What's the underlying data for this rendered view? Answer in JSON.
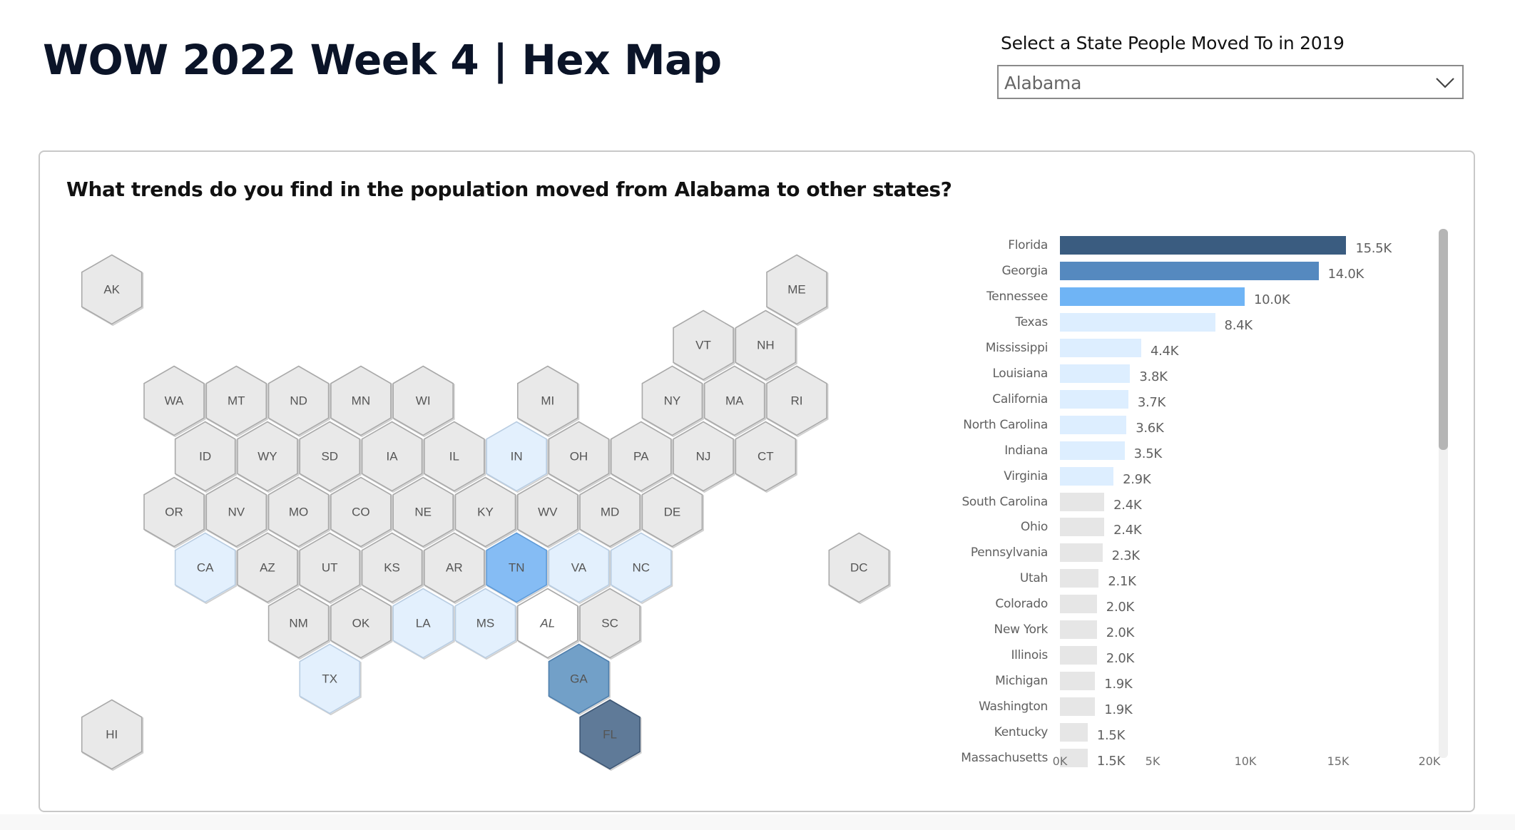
{
  "header": {
    "title": "WOW 2022 Week 4 | Hex Map"
  },
  "slicer": {
    "label": "Select a State People Moved To in 2019",
    "selected_value": "Alabama",
    "icon": "chevron-down-icon"
  },
  "panel": {
    "title": "What trends do you find in the population moved from Alabama to other states?"
  },
  "colors": {
    "hex_default_fill": "#e9e9e9",
    "hex_stroke": "#a9a9a9",
    "hex_selected_fill": "#ffffff",
    "hex_light_fill": "#e3f0fd",
    "hex_tn_fill": "#85bcf4",
    "hex_ga_fill": "#72a0c8",
    "hex_fl_fill": "#5f7a98",
    "bar_florida": "#3a5c80",
    "bar_georgia": "#5589bf",
    "bar_tennessee": "#6fb4f5",
    "bar_light": "#ddeeff",
    "bar_gray": "#e6e6e6"
  },
  "hexmap": {
    "states": [
      {
        "abbr": "AK",
        "k": -2,
        "row": 0,
        "tier": "none"
      },
      {
        "abbr": "ME",
        "k": 20,
        "row": 0,
        "tier": "none"
      },
      {
        "abbr": "VT",
        "k": 17,
        "row": 1,
        "tier": "none"
      },
      {
        "abbr": "NH",
        "k": 19,
        "row": 1,
        "tier": "none"
      },
      {
        "abbr": "WA",
        "k": 0,
        "row": 2,
        "tier": "none"
      },
      {
        "abbr": "MT",
        "k": 2,
        "row": 2,
        "tier": "none"
      },
      {
        "abbr": "ND",
        "k": 4,
        "row": 2,
        "tier": "none"
      },
      {
        "abbr": "MN",
        "k": 6,
        "row": 2,
        "tier": "none"
      },
      {
        "abbr": "WI",
        "k": 8,
        "row": 2,
        "tier": "none"
      },
      {
        "abbr": "MI",
        "k": 12,
        "row": 2,
        "tier": "none"
      },
      {
        "abbr": "NY",
        "k": 16,
        "row": 2,
        "tier": "none"
      },
      {
        "abbr": "MA",
        "k": 18,
        "row": 2,
        "tier": "none"
      },
      {
        "abbr": "RI",
        "k": 20,
        "row": 2,
        "tier": "none"
      },
      {
        "abbr": "ID",
        "k": 1,
        "row": 3,
        "tier": "none"
      },
      {
        "abbr": "WY",
        "k": 3,
        "row": 3,
        "tier": "none"
      },
      {
        "abbr": "SD",
        "k": 5,
        "row": 3,
        "tier": "none"
      },
      {
        "abbr": "IA",
        "k": 7,
        "row": 3,
        "tier": "none"
      },
      {
        "abbr": "IL",
        "k": 9,
        "row": 3,
        "tier": "none"
      },
      {
        "abbr": "IN",
        "k": 11,
        "row": 3,
        "tier": "light"
      },
      {
        "abbr": "OH",
        "k": 13,
        "row": 3,
        "tier": "none"
      },
      {
        "abbr": "PA",
        "k": 15,
        "row": 3,
        "tier": "none"
      },
      {
        "abbr": "NJ",
        "k": 17,
        "row": 3,
        "tier": "none"
      },
      {
        "abbr": "CT",
        "k": 19,
        "row": 3,
        "tier": "none"
      },
      {
        "abbr": "OR",
        "k": 0,
        "row": 4,
        "tier": "none"
      },
      {
        "abbr": "NV",
        "k": 2,
        "row": 4,
        "tier": "none"
      },
      {
        "abbr": "MO",
        "k": 4,
        "row": 4,
        "tier": "none"
      },
      {
        "abbr": "CO",
        "k": 6,
        "row": 4,
        "tier": "none"
      },
      {
        "abbr": "NE",
        "k": 8,
        "row": 4,
        "tier": "none"
      },
      {
        "abbr": "KY",
        "k": 10,
        "row": 4,
        "tier": "none"
      },
      {
        "abbr": "WV",
        "k": 12,
        "row": 4,
        "tier": "none"
      },
      {
        "abbr": "MD",
        "k": 14,
        "row": 4,
        "tier": "none"
      },
      {
        "abbr": "DE",
        "k": 16,
        "row": 4,
        "tier": "none"
      },
      {
        "abbr": "CA",
        "k": 1,
        "row": 5,
        "tier": "light"
      },
      {
        "abbr": "AZ",
        "k": 3,
        "row": 5,
        "tier": "none"
      },
      {
        "abbr": "UT",
        "k": 5,
        "row": 5,
        "tier": "none"
      },
      {
        "abbr": "KS",
        "k": 7,
        "row": 5,
        "tier": "none"
      },
      {
        "abbr": "AR",
        "k": 9,
        "row": 5,
        "tier": "none"
      },
      {
        "abbr": "TN",
        "k": 11,
        "row": 5,
        "tier": "tn"
      },
      {
        "abbr": "VA",
        "k": 13,
        "row": 5,
        "tier": "light"
      },
      {
        "abbr": "NC",
        "k": 15,
        "row": 5,
        "tier": "light"
      },
      {
        "abbr": "DC",
        "k": 22,
        "row": 5,
        "tier": "none"
      },
      {
        "abbr": "NM",
        "k": 4,
        "row": 6,
        "tier": "none"
      },
      {
        "abbr": "OK",
        "k": 6,
        "row": 6,
        "tier": "none"
      },
      {
        "abbr": "LA",
        "k": 8,
        "row": 6,
        "tier": "light"
      },
      {
        "abbr": "MS",
        "k": 10,
        "row": 6,
        "tier": "light"
      },
      {
        "abbr": "AL",
        "k": 12,
        "row": 6,
        "tier": "selected"
      },
      {
        "abbr": "SC",
        "k": 14,
        "row": 6,
        "tier": "none"
      },
      {
        "abbr": "TX",
        "k": 5,
        "row": 7,
        "tier": "light"
      },
      {
        "abbr": "GA",
        "k": 13,
        "row": 7,
        "tier": "ga"
      },
      {
        "abbr": "HI",
        "k": -2,
        "row": 8,
        "tier": "none"
      },
      {
        "abbr": "FL",
        "k": 14,
        "row": 8,
        "tier": "fl"
      }
    ]
  },
  "chart_data": {
    "type": "bar",
    "orientation": "horizontal",
    "title": "What trends do you find in the population moved from Alabama to other states?",
    "xlabel": "",
    "ylabel": "",
    "xlim": [
      0,
      20000
    ],
    "x_ticks": [
      "0K",
      "5K",
      "10K",
      "15K",
      "20K"
    ],
    "grid": false,
    "legend": null,
    "categories": [
      "Florida",
      "Georgia",
      "Tennessee",
      "Texas",
      "Mississippi",
      "Louisiana",
      "California",
      "North Carolina",
      "Indiana",
      "Virginia",
      "South Carolina",
      "Ohio",
      "Pennsylvania",
      "Utah",
      "Colorado",
      "New York",
      "Illinois",
      "Michigan",
      "Washington",
      "Kentucky",
      "Massachusetts"
    ],
    "values": [
      15500,
      14000,
      10000,
      8400,
      4400,
      3800,
      3700,
      3600,
      3500,
      2900,
      2400,
      2400,
      2300,
      2100,
      2000,
      2000,
      2000,
      1900,
      1900,
      1500,
      1500
    ],
    "value_labels": [
      "15.5K",
      "14.0K",
      "10.0K",
      "8.4K",
      "4.4K",
      "3.8K",
      "3.7K",
      "3.6K",
      "3.5K",
      "2.9K",
      "2.4K",
      "2.4K",
      "2.3K",
      "2.1K",
      "2.0K",
      "2.0K",
      "2.0K",
      "1.9K",
      "1.9K",
      "1.5K",
      "1.5K"
    ],
    "bar_tiers": [
      "florida",
      "georgia",
      "tennessee",
      "light",
      "light",
      "light",
      "light",
      "light",
      "light",
      "light",
      "gray",
      "gray",
      "gray",
      "gray",
      "gray",
      "gray",
      "gray",
      "gray",
      "gray",
      "gray",
      "gray"
    ]
  }
}
